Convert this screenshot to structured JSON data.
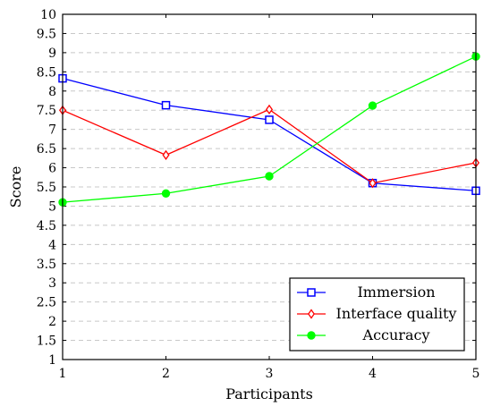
{
  "chart_data": {
    "type": "line",
    "x": [
      1,
      2,
      3,
      4,
      5
    ],
    "xlabel": "Participants",
    "ylabel": "Score",
    "xlim": [
      1,
      5
    ],
    "ylim": [
      1,
      10
    ],
    "xticks": [
      "1",
      "2",
      "3",
      "4",
      "5"
    ],
    "yticks": [
      "1",
      "1.5",
      "2",
      "2.5",
      "3",
      "3.5",
      "4",
      "4.5",
      "5",
      "5.5",
      "6",
      "6.5",
      "7",
      "7.5",
      "8",
      "8.5",
      "9",
      "9.5",
      "10"
    ],
    "grid": "horizontal dashed",
    "legend_position": "bottom-right",
    "series": [
      {
        "name": "Immersion",
        "color": "#0000ff",
        "marker": "square",
        "values": [
          8.33,
          7.63,
          7.25,
          5.6,
          5.4
        ]
      },
      {
        "name": "Interface quality",
        "color": "#ff0000",
        "marker": "diamond",
        "values": [
          7.5,
          6.33,
          7.52,
          5.6,
          6.13
        ]
      },
      {
        "name": "Accuracy",
        "color": "#00ff00",
        "marker": "circle",
        "values": [
          5.1,
          5.33,
          5.78,
          7.62,
          8.9
        ]
      }
    ]
  }
}
